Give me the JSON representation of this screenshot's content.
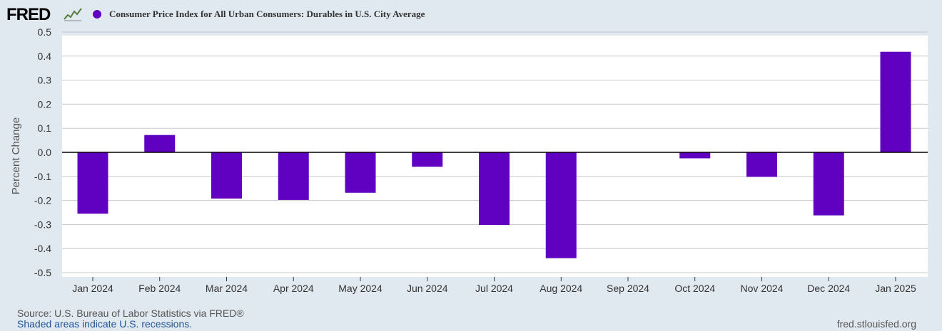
{
  "header": {
    "logo_text": "FRED",
    "series_title": "Consumer Price Index for All Urban Consumers: Durables in U.S. City Average",
    "series_color": "#6000c0"
  },
  "footer": {
    "source": "U.S. Bureau of Labor Statistics via FRED®",
    "source_prefix": "Source: ",
    "recession_note": "Shaded areas indicate U.S. recessions.",
    "url": "fred.stlouisfed.org"
  },
  "chart_data": {
    "type": "bar",
    "title": "Consumer Price Index for All Urban Consumers: Durables in U.S. City Average",
    "xlabel": "",
    "ylabel": "Percent Change",
    "ylim": [
      -0.5,
      0.5
    ],
    "yticks": [
      0.5,
      0.4,
      0.3,
      0.2,
      0.1,
      0.0,
      -0.1,
      -0.2,
      -0.3,
      -0.4,
      -0.5
    ],
    "ytick_labels": [
      "0.5",
      "0.4",
      "0.3",
      "0.2",
      "0.1",
      "0.0",
      "-0.1",
      "-0.2",
      "-0.3",
      "-0.4",
      "-0.5"
    ],
    "categories": [
      "Jan 2024",
      "Feb 2024",
      "Mar 2024",
      "Apr 2024",
      "May 2024",
      "Jun 2024",
      "Jul 2024",
      "Aug 2024",
      "Sep 2024",
      "Oct 2024",
      "Nov 2024",
      "Dec 2024",
      "Jan 2025"
    ],
    "series": [
      {
        "name": "Consumer Price Index for All Urban Consumers: Durables in U.S. City Average",
        "color": "#6000c0",
        "values": [
          -0.255,
          0.072,
          -0.192,
          -0.198,
          -0.168,
          -0.06,
          -0.302,
          -0.44,
          0.0,
          -0.025,
          -0.102,
          -0.262,
          0.418
        ]
      }
    ],
    "grid": true,
    "legend": "top-left"
  }
}
